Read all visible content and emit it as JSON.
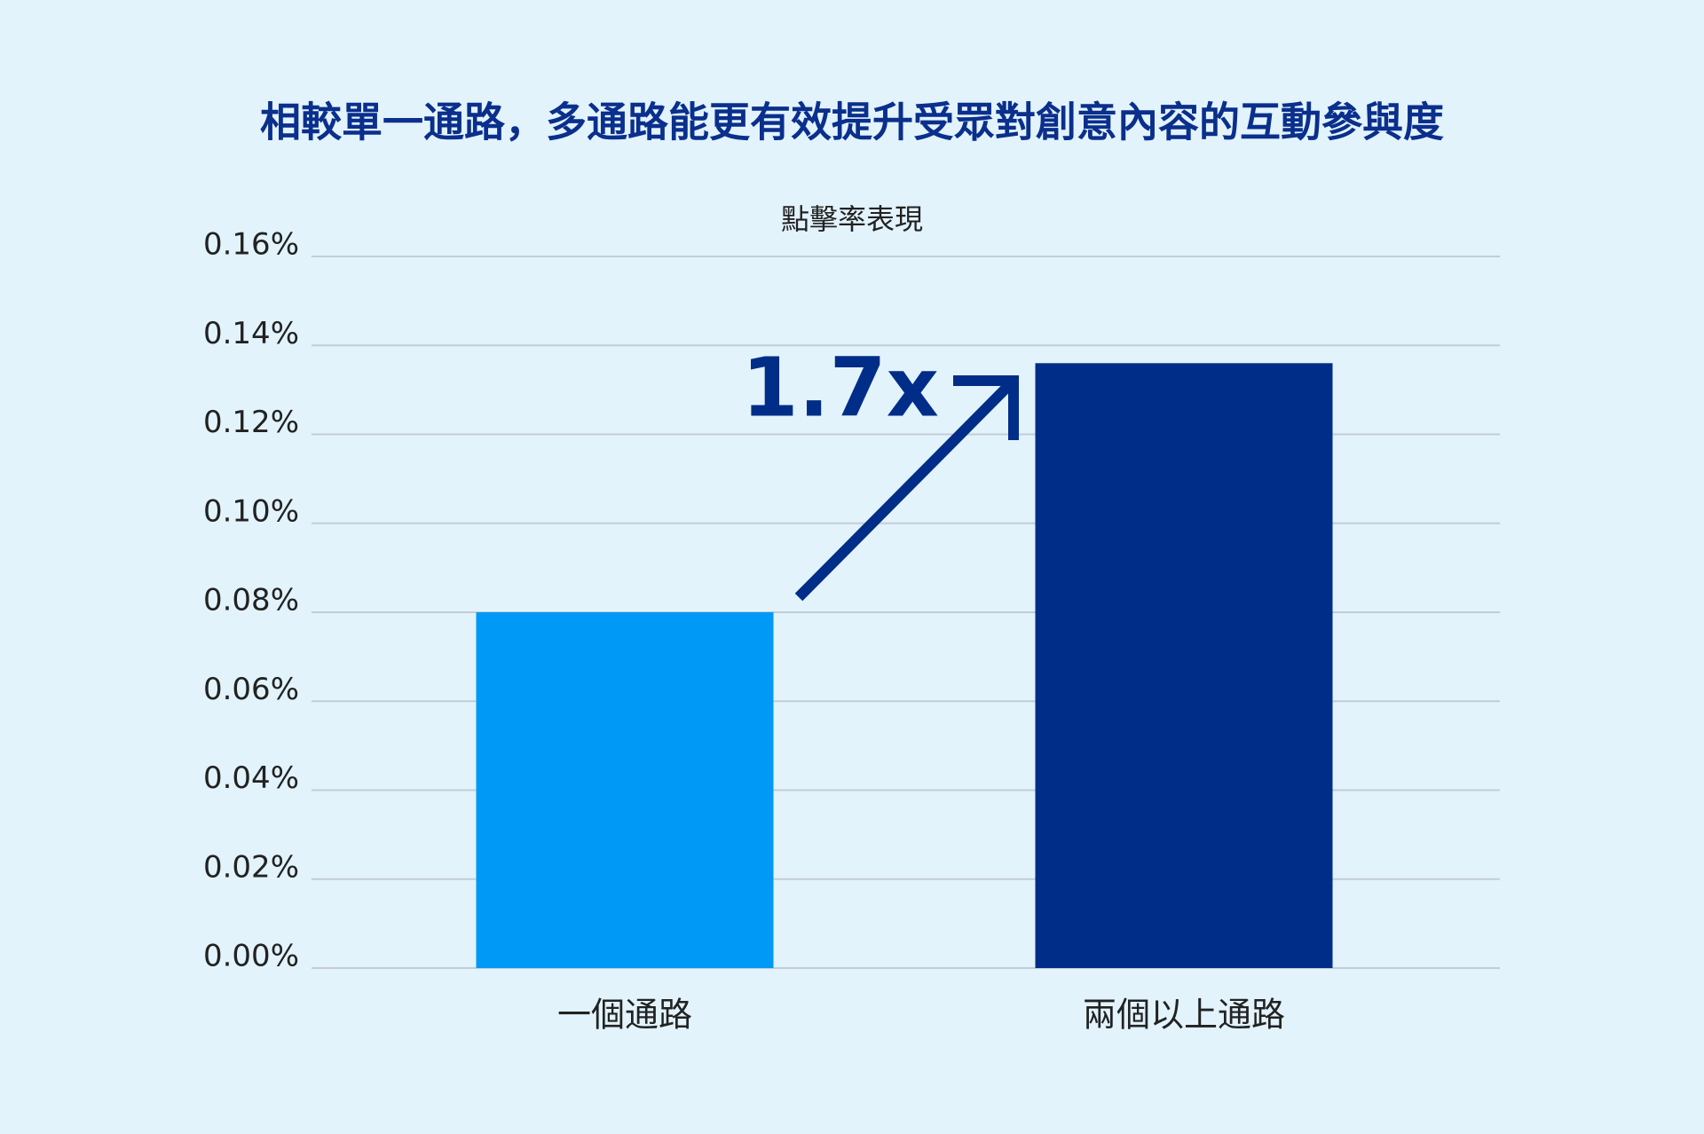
{
  "chart_data": {
    "type": "bar",
    "title": "相較單一通路，多通路能更有效提升受眾對創意內容的互動參與度",
    "subtitle": "點擊率表現",
    "annotation": "1.7x",
    "categories": [
      "一個通路",
      "兩個以上通路"
    ],
    "values": [
      0.08,
      0.136
    ],
    "colors": [
      "#0099f5",
      "#002d87"
    ],
    "ylim": [
      0,
      0.16
    ],
    "yticks": [
      {
        "value": 0,
        "label": "0.00%"
      },
      {
        "value": 0.02,
        "label": "0.02%"
      },
      {
        "value": 0.04,
        "label": "0.04%"
      },
      {
        "value": 0.06,
        "label": "0.06%"
      },
      {
        "value": 0.08,
        "label": "0.08%"
      },
      {
        "value": 0.1,
        "label": "0.10%"
      },
      {
        "value": 0.12,
        "label": "0.12%"
      },
      {
        "value": 0.14,
        "label": "0.14%"
      },
      {
        "value": 0.16,
        "label": "0.16%"
      }
    ],
    "grid": true
  }
}
